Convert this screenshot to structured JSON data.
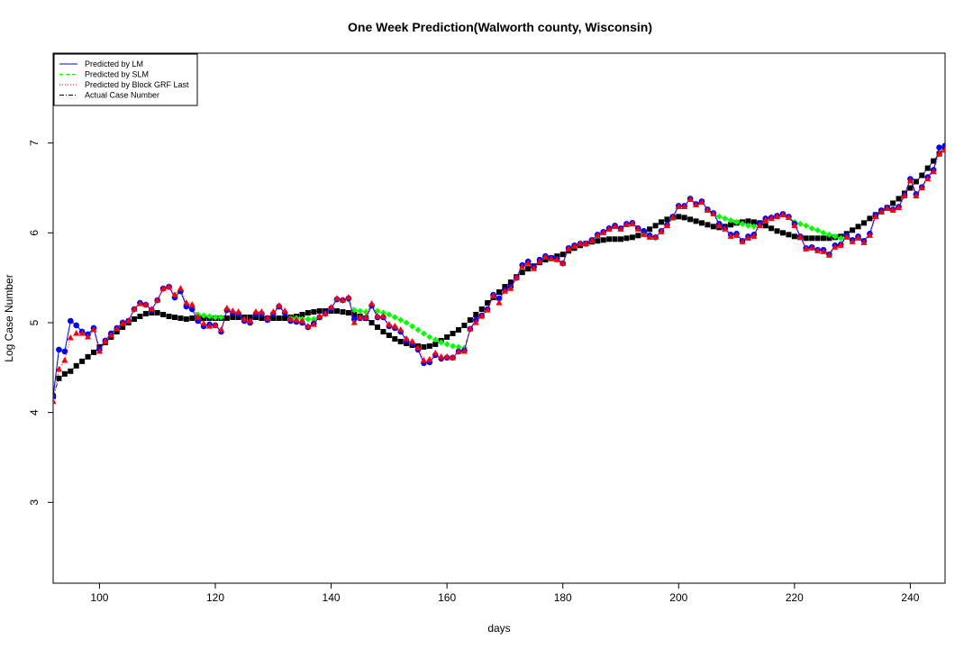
{
  "chart_data": {
    "type": "line",
    "title": "One Week Prediction(Walworth county, Wisconsin)",
    "xlabel": "days",
    "ylabel": "Log Case Number",
    "xlim": [
      92,
      246
    ],
    "ylim": [
      2.1,
      8.0
    ],
    "x_ticks": [
      100,
      120,
      140,
      160,
      180,
      200,
      220,
      240
    ],
    "y_ticks": [
      3,
      4,
      5,
      6,
      7
    ],
    "legend_position": "top-left",
    "legend": [
      {
        "label": "Predicted by LM",
        "color": "#0000ff",
        "line": "solid"
      },
      {
        "label": "Predicted by SLM",
        "color": "#00ff00",
        "line": "dashed"
      },
      {
        "label": "Predicted by Block GRF Last",
        "color": "#ff0000",
        "line": "dotted"
      },
      {
        "label": "Actual Case Number",
        "color": "#000000",
        "line": "dashdot"
      }
    ],
    "x": [
      92,
      93,
      94,
      95,
      96,
      97,
      98,
      99,
      100,
      101,
      102,
      103,
      104,
      105,
      106,
      107,
      108,
      109,
      110,
      111,
      112,
      113,
      114,
      115,
      116,
      117,
      118,
      119,
      120,
      121,
      122,
      123,
      124,
      125,
      126,
      127,
      128,
      129,
      130,
      131,
      132,
      133,
      134,
      135,
      136,
      137,
      138,
      139,
      140,
      141,
      142,
      143,
      144,
      145,
      146,
      147,
      148,
      149,
      150,
      151,
      152,
      153,
      154,
      155,
      156,
      157,
      158,
      159,
      160,
      161,
      162,
      163,
      164,
      165,
      166,
      167,
      168,
      169,
      170,
      171,
      172,
      173,
      174,
      175,
      176,
      177,
      178,
      179,
      180,
      181,
      182,
      183,
      184,
      185,
      186,
      187,
      188,
      189,
      190,
      191,
      192,
      193,
      194,
      195,
      196,
      197,
      198,
      199,
      200,
      201,
      202,
      203,
      204,
      205,
      206,
      207,
      208,
      209,
      210,
      211,
      212,
      213,
      214,
      215,
      216,
      217,
      218,
      219,
      220,
      221,
      222,
      223,
      224,
      225,
      226,
      227,
      228,
      229,
      230,
      231,
      232,
      233,
      234,
      235,
      236,
      237,
      238,
      239,
      240,
      241,
      242,
      243,
      244,
      245,
      246
    ],
    "series": [
      {
        "name": "Actual Case Number",
        "color": "#000000",
        "marker": "square",
        "values": [
          4.18,
          4.38,
          4.43,
          4.46,
          4.52,
          4.57,
          4.62,
          4.67,
          4.73,
          4.78,
          4.84,
          4.9,
          4.95,
          5.0,
          5.04,
          5.07,
          5.1,
          5.11,
          5.11,
          5.09,
          5.07,
          5.06,
          5.05,
          5.04,
          5.05,
          5.05,
          5.05,
          5.05,
          5.05,
          5.05,
          5.05,
          5.06,
          5.06,
          5.06,
          5.06,
          5.06,
          5.05,
          5.05,
          5.05,
          5.05,
          5.05,
          5.06,
          5.07,
          5.09,
          5.11,
          5.12,
          5.13,
          5.13,
          5.13,
          5.13,
          5.12,
          5.11,
          5.09,
          5.07,
          5.05,
          5.0,
          4.95,
          4.9,
          4.86,
          4.82,
          4.79,
          4.77,
          4.75,
          4.74,
          4.73,
          4.74,
          4.76,
          4.8,
          4.84,
          4.88,
          4.92,
          4.97,
          5.03,
          5.09,
          5.15,
          5.22,
          5.28,
          5.34,
          5.4,
          5.45,
          5.51,
          5.56,
          5.6,
          5.63,
          5.67,
          5.7,
          5.72,
          5.74,
          5.76,
          5.8,
          5.83,
          5.86,
          5.88,
          5.9,
          5.91,
          5.92,
          5.93,
          5.93,
          5.93,
          5.94,
          5.95,
          5.97,
          6.0,
          6.04,
          6.08,
          6.12,
          6.15,
          6.17,
          6.18,
          6.17,
          6.15,
          6.13,
          6.11,
          6.09,
          6.07,
          6.06,
          6.07,
          6.09,
          6.11,
          6.12,
          6.13,
          6.12,
          6.11,
          6.08,
          6.05,
          6.02,
          6.0,
          5.98,
          5.96,
          5.95,
          5.94,
          5.94,
          5.94,
          5.94,
          5.94,
          5.95,
          5.96,
          5.99,
          6.03,
          6.07,
          6.11,
          6.16,
          6.2,
          6.24,
          6.28,
          6.33,
          6.38,
          6.44,
          6.5,
          6.57,
          6.64,
          6.72,
          6.8,
          6.88,
          6.96
        ]
      },
      {
        "name": "Predicted by LM",
        "color": "#0000ff",
        "marker": "circle",
        "values": [
          4.18,
          4.7,
          4.68,
          5.02,
          4.97,
          4.9,
          4.87,
          4.94,
          4.7,
          4.8,
          4.88,
          4.94,
          5.0,
          5.02,
          5.15,
          5.22,
          5.2,
          5.14,
          5.25,
          5.38,
          5.4,
          5.28,
          5.35,
          5.18,
          5.15,
          5.02,
          4.96,
          4.98,
          4.97,
          4.9,
          5.14,
          5.11,
          5.1,
          5.02,
          5.0,
          5.1,
          5.1,
          5.03,
          5.1,
          5.18,
          5.11,
          5.02,
          5.01,
          5.0,
          4.95,
          4.99,
          5.06,
          5.1,
          5.16,
          5.26,
          5.25,
          5.27,
          5.04,
          5.05,
          5.05,
          5.19,
          5.06,
          5.06,
          4.96,
          4.94,
          4.9,
          4.8,
          4.77,
          4.7,
          4.55,
          4.56,
          4.64,
          4.6,
          4.61,
          4.61,
          4.68,
          4.69,
          4.93,
          5.03,
          5.08,
          5.15,
          5.31,
          5.27,
          5.36,
          5.4,
          5.5,
          5.64,
          5.68,
          5.62,
          5.7,
          5.74,
          5.72,
          5.71,
          5.66,
          5.83,
          5.86,
          5.88,
          5.88,
          5.92,
          5.98,
          6.01,
          6.05,
          6.08,
          6.05,
          6.1,
          6.11,
          6.05,
          6.02,
          5.97,
          5.95,
          6.02,
          6.09,
          6.18,
          6.3,
          6.3,
          6.38,
          6.32,
          6.35,
          6.26,
          6.22,
          6.1,
          6.05,
          5.98,
          5.99,
          5.91,
          5.96,
          5.98,
          6.1,
          6.16,
          6.17,
          6.19,
          6.21,
          6.18,
          6.1,
          5.96,
          5.83,
          5.84,
          5.81,
          5.81,
          5.76,
          5.86,
          5.87,
          5.97,
          5.92,
          5.96,
          5.91,
          5.99,
          6.2,
          6.25,
          6.28,
          6.26,
          6.29,
          6.42,
          6.6,
          6.43,
          6.51,
          6.62,
          6.7,
          6.95,
          6.97
        ]
      },
      {
        "name": "Predicted by SLM",
        "color": "#00ff00",
        "marker": "diamond",
        "values": [
          4.18,
          4.7,
          4.68,
          5.02,
          4.97,
          4.9,
          4.87,
          4.94,
          4.7,
          4.8,
          4.88,
          4.94,
          5.0,
          5.02,
          5.15,
          5.22,
          5.2,
          5.14,
          5.25,
          5.38,
          5.4,
          5.3,
          5.35,
          5.19,
          5.15,
          5.09,
          5.08,
          5.07,
          5.06,
          5.06,
          5.14,
          5.11,
          5.1,
          5.02,
          5.01,
          5.1,
          5.1,
          5.04,
          5.1,
          5.18,
          5.11,
          5.05,
          5.05,
          5.04,
          5.04,
          5.04,
          5.06,
          5.1,
          5.16,
          5.26,
          5.25,
          5.26,
          5.14,
          5.13,
          5.12,
          5.19,
          5.13,
          5.11,
          5.09,
          5.06,
          5.03,
          5.0,
          4.96,
          4.92,
          4.88,
          4.84,
          4.81,
          4.78,
          4.76,
          4.74,
          4.73,
          4.72,
          4.93,
          5.03,
          5.08,
          5.15,
          5.31,
          5.27,
          5.36,
          5.4,
          5.5,
          5.64,
          5.68,
          5.62,
          5.7,
          5.74,
          5.72,
          5.71,
          5.66,
          5.83,
          5.86,
          5.88,
          5.88,
          5.92,
          5.98,
          6.01,
          6.05,
          6.08,
          6.05,
          6.1,
          6.11,
          6.05,
          5.99,
          5.95,
          5.95,
          6.02,
          6.09,
          6.18,
          6.3,
          6.3,
          6.38,
          6.32,
          6.35,
          6.26,
          6.22,
          6.18,
          6.16,
          6.14,
          6.12,
          6.1,
          6.08,
          6.07,
          6.1,
          6.16,
          6.17,
          6.19,
          6.21,
          6.18,
          6.12,
          6.1,
          6.08,
          6.05,
          6.03,
          6.0,
          5.98,
          5.96,
          5.94,
          5.97,
          5.92,
          5.96,
          5.91,
          5.99,
          6.2,
          6.25,
          6.28,
          6.26,
          6.29,
          6.42,
          6.6,
          6.43,
          6.51,
          6.62,
          6.7,
          6.95,
          6.97
        ]
      },
      {
        "name": "Predicted by Block GRF Last",
        "color": "#ff0000",
        "marker": "triangle",
        "values": [
          4.12,
          4.48,
          4.58,
          4.83,
          4.88,
          4.88,
          4.84,
          4.92,
          4.68,
          4.79,
          4.86,
          4.93,
          4.99,
          5.02,
          5.15,
          5.21,
          5.2,
          5.15,
          5.25,
          5.38,
          5.4,
          5.31,
          5.38,
          5.22,
          5.2,
          5.06,
          4.99,
          4.96,
          4.97,
          4.92,
          5.16,
          5.13,
          5.12,
          5.04,
          5.02,
          5.12,
          5.12,
          5.05,
          5.12,
          5.19,
          5.13,
          5.04,
          5.03,
          5.02,
          4.96,
          4.98,
          5.07,
          5.1,
          5.17,
          5.27,
          5.25,
          5.28,
          5.0,
          5.06,
          5.06,
          5.21,
          5.07,
          5.07,
          4.98,
          4.96,
          4.92,
          4.82,
          4.79,
          4.72,
          4.58,
          4.59,
          4.66,
          4.62,
          4.62,
          4.61,
          4.68,
          4.68,
          4.93,
          5.0,
          5.07,
          5.14,
          5.3,
          5.22,
          5.35,
          5.38,
          5.5,
          5.62,
          5.66,
          5.6,
          5.68,
          5.73,
          5.71,
          5.7,
          5.66,
          5.82,
          5.85,
          5.88,
          5.88,
          5.91,
          5.97,
          6.0,
          6.04,
          6.07,
          6.04,
          6.09,
          6.1,
          6.04,
          5.98,
          5.95,
          5.95,
          6.01,
          6.08,
          6.17,
          6.29,
          6.29,
          6.37,
          6.31,
          6.34,
          6.25,
          6.21,
          6.08,
          6.04,
          5.96,
          5.97,
          5.9,
          5.94,
          5.96,
          6.08,
          6.14,
          6.16,
          6.18,
          6.2,
          6.17,
          6.08,
          5.95,
          5.82,
          5.83,
          5.8,
          5.79,
          5.75,
          5.84,
          5.86,
          5.95,
          5.9,
          5.94,
          5.89,
          5.97,
          6.18,
          6.23,
          6.27,
          6.25,
          6.28,
          6.41,
          6.58,
          6.41,
          6.5,
          6.6,
          6.68,
          6.88,
          6.92
        ]
      }
    ]
  }
}
